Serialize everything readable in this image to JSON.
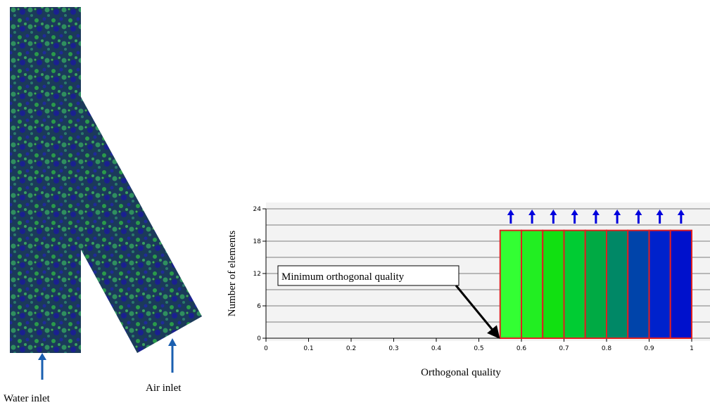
{
  "figure": {
    "labels": {
      "water_inlet": "Water inlet",
      "air_inlet": "Air inlet"
    }
  },
  "chart_data": {
    "type": "histogram",
    "x_label": "Orthogonal quality",
    "y_label": "Number of elements",
    "annotation": "Minimum orthogonal quality",
    "bins": [
      0.55,
      0.6,
      0.65,
      0.7,
      0.75,
      0.8,
      0.85,
      0.9,
      0.95,
      1.0
    ],
    "values": [
      20,
      20,
      20,
      20,
      20,
      20,
      20,
      20,
      20
    ],
    "colors": [
      "#33ff33",
      "#22ee22",
      "#11e011",
      "#00cc33",
      "#00aa44",
      "#008866",
      "#0044aa",
      "#0022cc",
      "#0011cc"
    ],
    "edge_color": "#e02020",
    "xlim": [
      0,
      1
    ],
    "xticks": [
      0,
      0.1,
      0.2,
      0.3,
      0.4,
      0.5,
      0.6,
      0.7,
      0.8,
      0.9,
      1
    ],
    "ylim": [
      0,
      24
    ],
    "yticks": [
      0,
      6,
      12,
      18,
      24
    ],
    "ygrid": [
      0,
      3,
      6,
      9,
      12,
      15,
      18,
      21,
      24
    ]
  }
}
